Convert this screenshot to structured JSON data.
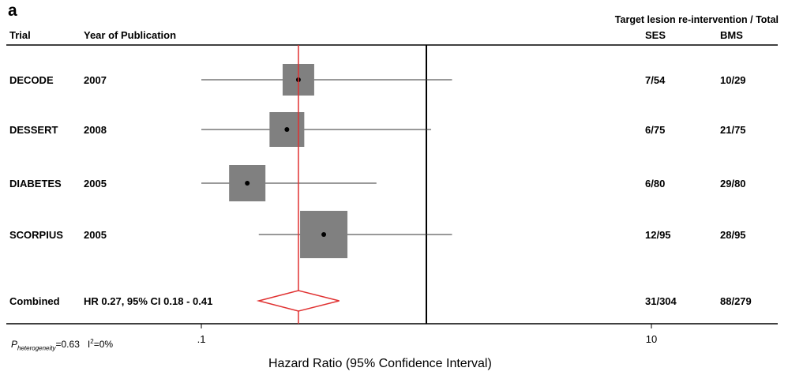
{
  "panel_label": "a",
  "headers": {
    "trial": "Trial",
    "year": "Year of Publication",
    "outcome": "Target lesion re-intervention / Total",
    "ses": "SES",
    "bms": "BMS"
  },
  "heterogeneity": {
    "p_label": "P",
    "p_sub": "heterogeneity",
    "p_value": "=0.63",
    "i2_label": "I",
    "i2_sup": "2",
    "i2_value": "=0%"
  },
  "colors": {
    "box": "#808080",
    "reference_line": "#e03030",
    "diamond": "#e03030",
    "axis": "#000000"
  },
  "chart_data": {
    "type": "forest",
    "xlabel": "Hazard Ratio (95% Confidence Interval)",
    "x_scale": "log",
    "xlim": [
      0.01,
      100
    ],
    "ticks": [
      {
        "value": 0.1,
        "label": ".1"
      },
      {
        "value": 10,
        "label": "10"
      }
    ],
    "null_line": 1,
    "pooled_line": 0.27,
    "studies": [
      {
        "trial": "DECODE",
        "year": "2007",
        "hr": 0.27,
        "ci_low": 0.1,
        "ci_high": 1.3,
        "weight": 1.0,
        "ses": "7/54",
        "bms": "10/29"
      },
      {
        "trial": "DESSERT",
        "year": "2008",
        "hr": 0.24,
        "ci_low": 0.1,
        "ci_high": 1.05,
        "weight": 1.1,
        "ses": "6/75",
        "bms": "21/75"
      },
      {
        "trial": "DIABETES",
        "year": "2005",
        "hr": 0.16,
        "ci_low": 0.1,
        "ci_high": 0.6,
        "weight": 1.15,
        "ses": "6/80",
        "bms": "29/80"
      },
      {
        "trial": "SCORPIUS",
        "year": "2005",
        "hr": 0.35,
        "ci_low": 0.18,
        "ci_high": 1.3,
        "weight": 1.5,
        "ses": "12/95",
        "bms": "28/95"
      }
    ],
    "combined": {
      "label": "Combined",
      "text": "HR 0.27, 95% CI 0.18 - 0.41",
      "hr": 0.27,
      "ci_low": 0.18,
      "ci_high": 0.41,
      "ses": "31/304",
      "bms": "88/279"
    }
  }
}
